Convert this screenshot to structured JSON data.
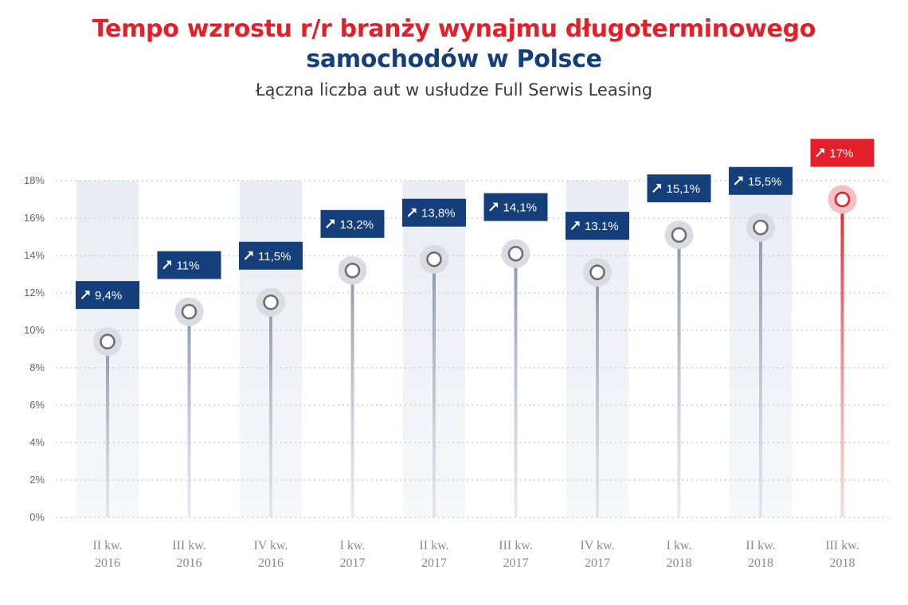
{
  "header": {
    "title_line1": "Tempo wzrostu r/r branży wynajmu długoterminowego",
    "title_line2": "samochodów w Polsce",
    "subtitle": "Łączna liczba aut w usłudze Full Serwis Leasing"
  },
  "colors": {
    "accent_red": "#e3202a",
    "brand_blue": "#153f7a",
    "stem_gray": "#9aa3b5",
    "band": "#eef0f5",
    "grid": "#c8c8c8"
  },
  "chart_data": {
    "type": "lollipop",
    "title": "Tempo wzrostu r/r branży wynajmu długoterminowego samochodów w Polsce",
    "subtitle": "Łączna liczba aut w usłudze Full Serwis Leasing",
    "categories": [
      [
        "II kw.",
        "2016"
      ],
      [
        "III kw.",
        "2016"
      ],
      [
        "IV kw.",
        "2016"
      ],
      [
        "I kw.",
        "2017"
      ],
      [
        "II kw.",
        "2017"
      ],
      [
        "III kw.",
        "2017"
      ],
      [
        "IV kw.",
        "2017"
      ],
      [
        "I kw.",
        "2018"
      ],
      [
        "II kw.",
        "2018"
      ],
      [
        "III kw.",
        "2018"
      ]
    ],
    "values": [
      9.4,
      11,
      11.5,
      13.2,
      13.8,
      14.1,
      13.1,
      15.1,
      15.5,
      17
    ],
    "data_labels": [
      "9,4%",
      "11%",
      "11,5%",
      "13,2%",
      "13,8%",
      "14,1%",
      "13.1%",
      "15,1%",
      "15,5%",
      "17%"
    ],
    "highlight_index": 9,
    "ylim": [
      0,
      18
    ],
    "yticks": [
      "0%",
      "2%",
      "4%",
      "6%",
      "8%",
      "10%",
      "12%",
      "14%",
      "16%",
      "18%"
    ],
    "grid": true,
    "label_icon": "arrow-up-right-icon"
  }
}
